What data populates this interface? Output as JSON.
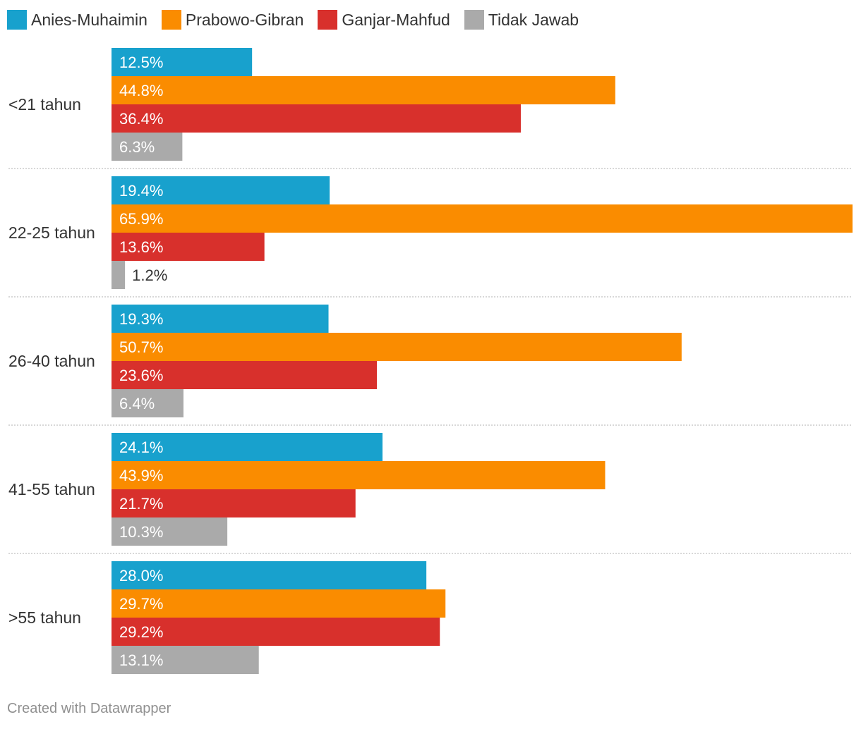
{
  "chart_data": {
    "type": "bar",
    "orientation": "horizontal",
    "grouped": true,
    "categories": [
      "<21 tahun",
      "22-25 tahun",
      "26-40 tahun",
      "41-55 tahun",
      ">55 tahun"
    ],
    "series": [
      {
        "name": "Anies-Muhaimin",
        "color": "#18a1cd",
        "values": [
          12.5,
          19.4,
          19.3,
          24.1,
          28.0
        ],
        "labels": [
          "12.5%",
          "19.4%",
          "19.3%",
          "24.1%",
          "28.0%"
        ]
      },
      {
        "name": "Prabowo-Gibran",
        "color": "#fa8c00",
        "values": [
          44.8,
          65.9,
          50.7,
          43.9,
          29.7
        ],
        "labels": [
          "44.8%",
          "65.9%",
          "50.7%",
          "43.9%",
          "29.7%"
        ]
      },
      {
        "name": "Ganjar-Mahfud",
        "color": "#d8302c",
        "values": [
          36.4,
          13.6,
          23.6,
          21.7,
          29.2
        ],
        "labels": [
          "36.4%",
          "13.6%",
          "23.6%",
          "21.7%",
          "29.2%"
        ]
      },
      {
        "name": "Tidak Jawab",
        "color": "#aaaaaa",
        "values": [
          6.3,
          1.2,
          6.4,
          10.3,
          13.1
        ],
        "labels": [
          "6.3%",
          "1.2%",
          "6.4%",
          "10.3%",
          "13.1%"
        ]
      }
    ],
    "xlim": [
      0,
      65.9
    ],
    "grid": false,
    "legend": "top-left",
    "title": "",
    "xlabel": "",
    "ylabel": ""
  },
  "footer": {
    "credit": "Created with Datawrapper"
  }
}
